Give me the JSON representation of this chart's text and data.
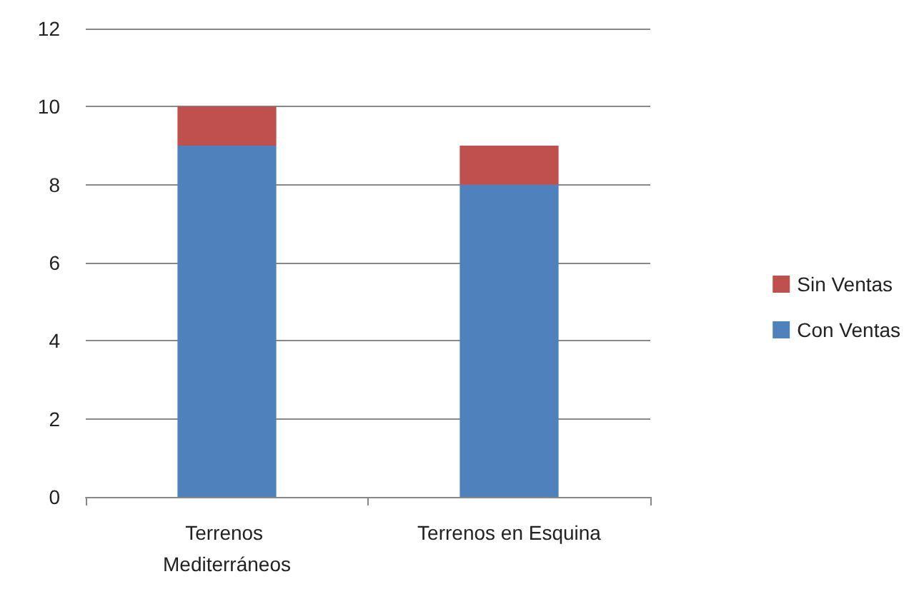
{
  "chart_data": {
    "type": "bar",
    "stacked": true,
    "categories": [
      "Terrenos Mediterráneos",
      "Terrenos en Esquina"
    ],
    "series": [
      {
        "name": "Con Ventas",
        "color": "#4f81bd",
        "values": [
          9,
          8
        ]
      },
      {
        "name": "Sin Ventas",
        "color": "#c0504d",
        "values": [
          1,
          1
        ]
      }
    ],
    "ylim": [
      0,
      12
    ],
    "yticks": [
      0,
      2,
      4,
      6,
      8,
      10,
      12
    ],
    "grid": "y",
    "legend": "right"
  }
}
